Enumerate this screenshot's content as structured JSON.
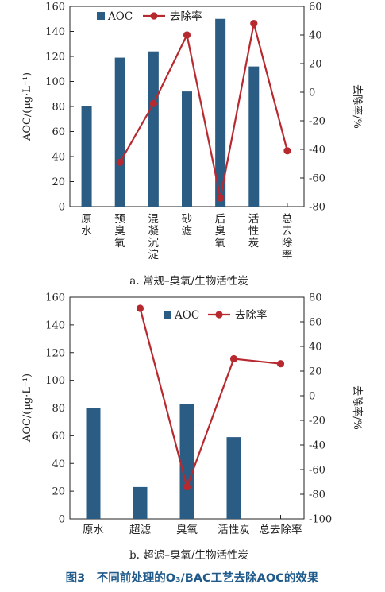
{
  "chart_data": [
    {
      "type": "bar+line",
      "subtitle": "a. 常规–臭氧/生物活性炭",
      "categories": [
        "原水",
        "预臭氧",
        "混凝沉淀",
        "砂滤",
        "后臭氧",
        "活性炭",
        "总去除率"
      ],
      "ylabel_left": "AOC/(μg·L⁻¹)",
      "ylabel_right": "去除率/%",
      "ylim_left": [
        0,
        160
      ],
      "ylim_right": [
        -80,
        60
      ],
      "left_ticks": [
        0,
        20,
        40,
        60,
        80,
        100,
        120,
        140,
        160
      ],
      "right_ticks": [
        -80,
        -60,
        -40,
        -20,
        0,
        20,
        40,
        60
      ],
      "legend_placement": "top",
      "series": [
        {
          "name": "AOC",
          "type": "bar",
          "axis": "left",
          "color": "#2b5c84",
          "values": [
            80,
            119,
            124,
            92,
            150,
            112,
            null
          ]
        },
        {
          "name": "去除率",
          "type": "line",
          "axis": "right",
          "color": "#b8292f",
          "values": [
            null,
            -49,
            -8,
            40,
            -74,
            48,
            -41
          ]
        }
      ]
    },
    {
      "type": "bar+line",
      "subtitle": "b. 超滤–臭氧/生物活性炭",
      "categories": [
        "原水",
        "超滤",
        "臭氧",
        "活性炭",
        "总去除率"
      ],
      "ylabel_left": "AOC/(μg·L⁻¹)",
      "ylabel_right": "去除率/%",
      "ylim_left": [
        0,
        160
      ],
      "ylim_right": [
        -100,
        80
      ],
      "left_ticks": [
        0,
        20,
        40,
        60,
        80,
        100,
        120,
        140,
        160
      ],
      "right_ticks": [
        -100,
        -80,
        -60,
        -40,
        -20,
        0,
        20,
        40,
        60,
        80
      ],
      "legend_placement": "top",
      "series": [
        {
          "name": "AOC",
          "type": "bar",
          "axis": "left",
          "color": "#2b5c84",
          "values": [
            80,
            23,
            83,
            59,
            null
          ]
        },
        {
          "name": "去除率",
          "type": "line",
          "axis": "right",
          "color": "#b8292f",
          "values": [
            null,
            71,
            -74,
            30,
            26
          ]
        }
      ]
    }
  ],
  "figure_caption": "图3　不同前处理的O₃/BAC工艺去除AOC的效果"
}
